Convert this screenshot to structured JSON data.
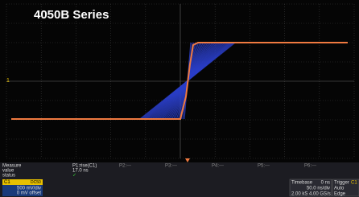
{
  "header": {
    "title": "4050B Series"
  },
  "measure": {
    "label": "Measure",
    "params": [
      "P1:rise(C1)",
      "P2:---",
      "P3:---",
      "P4:---",
      "P5:---",
      "P6:---"
    ],
    "rows": [
      {
        "label": "value",
        "cells": [
          "17.0 ns"
        ]
      },
      {
        "label": "status",
        "cells": [
          "✓"
        ]
      }
    ]
  },
  "channel": {
    "name": "C1",
    "coupling": "DC50",
    "scale": "500 mV/div",
    "offset": "0 mV offset"
  },
  "timebase": {
    "label": "Timebase",
    "delay": "0 ns",
    "scale": "50.0 ns/div",
    "rate": "2.00 kS  4.00 GS/s"
  },
  "trigger": {
    "label": "Trigger",
    "source": "C1",
    "mode": "Auto",
    "type": "Edge"
  }
}
